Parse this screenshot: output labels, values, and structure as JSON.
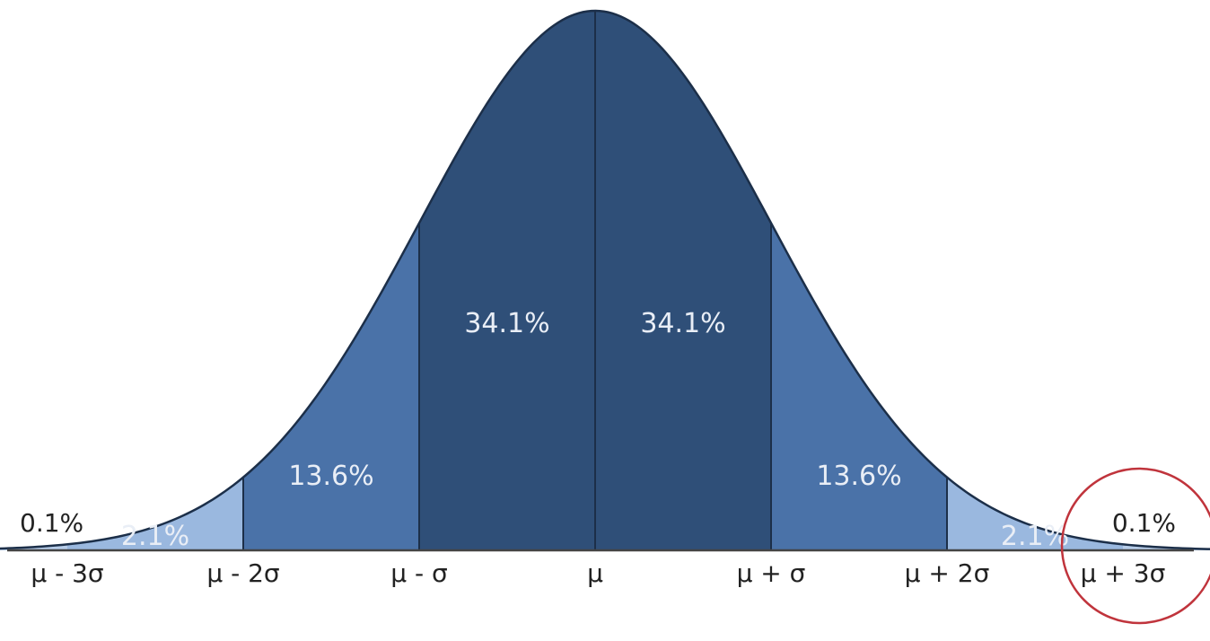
{
  "chart_data": {
    "type": "area",
    "title": "",
    "xlabel": "",
    "ylabel": "",
    "distribution": "normal",
    "x_range_sigma": [
      -3.5,
      3.6
    ],
    "tick_positions_sigma": [
      -3,
      -2,
      -1,
      0,
      1,
      2,
      3
    ],
    "tick_labels": [
      "μ - 3σ",
      "μ - 2σ",
      "μ - σ",
      "μ",
      "μ + σ",
      "μ + 2σ",
      "μ + 3σ"
    ],
    "regions": [
      {
        "from": -3,
        "to": -2,
        "value": 2.1,
        "label": "2.1%",
        "color": "#9ab8df"
      },
      {
        "from": -2,
        "to": -1,
        "value": 13.6,
        "label": "13.6%",
        "color": "#4a72a8"
      },
      {
        "from": -1,
        "to": 0,
        "value": 34.1,
        "label": "34.1%",
        "color": "#2f4f78"
      },
      {
        "from": 0,
        "to": 1,
        "value": 34.1,
        "label": "34.1%",
        "color": "#2f4f78"
      },
      {
        "from": 1,
        "to": 2,
        "value": 13.6,
        "label": "13.6%",
        "color": "#4a72a8"
      },
      {
        "from": 2,
        "to": 3,
        "value": 2.1,
        "label": "2.1%",
        "color": "#9ab8df"
      }
    ],
    "tails": [
      {
        "side": "left",
        "value": 0.1,
        "label": "0.1%"
      },
      {
        "side": "right",
        "value": 0.1,
        "label": "0.1%"
      }
    ],
    "tail_color": "#b7cde9",
    "annotation": {
      "type": "circle",
      "around": "μ + 3σ",
      "color": "#c0343c"
    }
  }
}
